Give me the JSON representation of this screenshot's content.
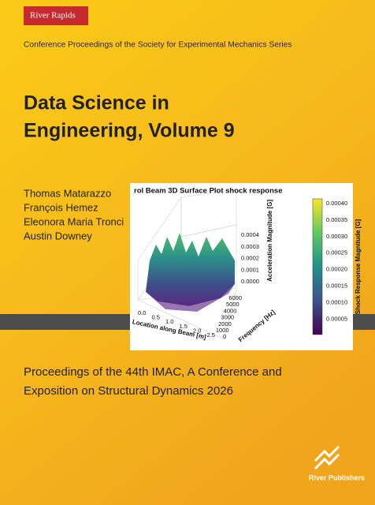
{
  "badge": "River Rapids",
  "series": "Conference Proceedings of the Society for Experimental Mechanics Series",
  "title": [
    "Data Science in",
    "Engineering, Volume 9"
  ],
  "authors": [
    "Thomas Matarazzo",
    "François Hemez",
    "Eleonora Maria Tronci",
    "Austin Downey"
  ],
  "figure": {
    "title": "rol Beam 3D Surface Plot shock response",
    "colorbar_ticks": [
      "0.00040",
      "0.00035",
      "0.00030",
      "0.00025",
      "0.00020",
      "0.00015",
      "0.00010",
      "0.00005"
    ],
    "colorbar_label": "Shock Response Magnitude [G]",
    "z_ticks": [
      "0.0004",
      "0.0003",
      "0.0002",
      "0.0001",
      "0.0000"
    ],
    "z_label": "Acceleration Magnitude [G]",
    "x_ticks": [
      "0.0",
      "0.5",
      "1.0",
      "1.5",
      "2.0",
      "2.5"
    ],
    "x_label": "Location along Beam [m]",
    "y_ticks": [
      "6000",
      "5000",
      "4000",
      "3000",
      "2000",
      "1000",
      "0"
    ],
    "y_label": "Frequency [Hz]"
  },
  "subtitle": [
    "Proceedings of the 44th IMAC, A Conference and",
    "Exposition on Structural Dynamics 2026"
  ],
  "publisher": "River Publishers"
}
